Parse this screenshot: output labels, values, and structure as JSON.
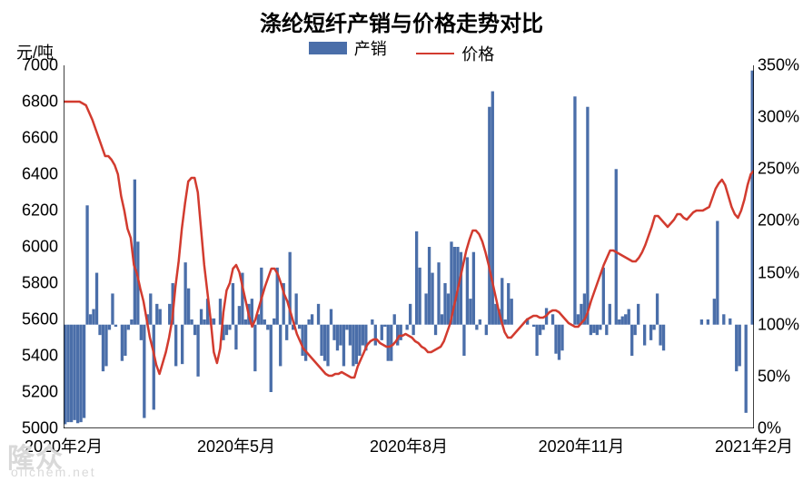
{
  "chart": {
    "type": "bar+line-dual-axis",
    "title": "涤纶短纤产销与价格走势对比",
    "title_fontsize": 24,
    "title_color": "#000000",
    "background_color": "#ffffff",
    "axis_color": "#000000",
    "tick_fontsize": 18,
    "legend": {
      "items": [
        {
          "label": "产销",
          "kind": "bar",
          "color": "#4a6ea9"
        },
        {
          "label": "价格",
          "kind": "line",
          "color": "#d23b2f"
        }
      ],
      "fontsize": 18
    },
    "left_axis": {
      "title": "元/吨",
      "min": 5000,
      "max": 7000,
      "step": 200,
      "ticks": [
        5000,
        5200,
        5400,
        5600,
        5800,
        6000,
        6200,
        6400,
        6600,
        6800,
        7000
      ]
    },
    "right_axis": {
      "min": 0,
      "max": 350,
      "step": 50,
      "ticks": [
        0,
        50,
        100,
        150,
        200,
        250,
        300,
        350
      ],
      "suffix": "%"
    },
    "x_axis": {
      "tick_labels": [
        "2020年2月",
        "2020年5月",
        "2020年8月",
        "2020年11月",
        "2021年2月"
      ]
    },
    "bars": {
      "color": "#4a6ea9",
      "baseline_pct": 100,
      "values_pct": [
        4,
        6,
        6,
        8,
        5,
        6,
        10,
        215,
        110,
        115,
        150,
        90,
        55,
        60,
        95,
        130,
        98,
        100,
        65,
        70,
        95,
        105,
        240,
        180,
        85,
        10,
        110,
        130,
        18,
        120,
        115,
        100,
        100,
        120,
        140,
        60,
        100,
        62,
        160,
        135,
        105,
        90,
        50,
        115,
        105,
        125,
        106,
        106,
        100,
        125,
        85,
        90,
        95,
        140,
        76,
        118,
        150,
        105,
        120,
        125,
        55,
        110,
        155,
        105,
        95,
        35,
        106,
        155,
        60,
        140,
        85,
        170,
        95,
        130,
        96,
        70,
        65,
        105,
        110,
        100,
        120,
        70,
        65,
        60,
        115,
        85,
        75,
        80,
        60,
        95,
        80,
        60,
        62,
        70,
        80,
        75,
        100,
        105,
        80,
        100,
        85,
        98,
        65,
        65,
        110,
        80,
        85,
        100,
        95,
        120,
        90,
        190,
        155,
        100,
        130,
        175,
        150,
        90,
        160,
        110,
        140,
        130,
        180,
        175,
        175,
        170,
        70,
        165,
        125,
        170,
        95,
        105,
        100,
        90,
        310,
        325,
        120,
        115,
        145,
        105,
        140,
        125,
        100,
        100,
        100,
        100,
        106,
        100,
        98,
        70,
        90,
        95,
        116,
        100,
        110,
        72,
        66,
        75,
        100,
        100,
        100,
        320,
        110,
        120,
        130,
        310,
        90,
        92,
        90,
        95,
        155,
        90,
        120,
        100,
        250,
        105,
        108,
        110,
        115,
        70,
        90,
        120,
        100,
        80,
        100,
        85,
        95,
        130,
        80,
        75,
        100,
        100,
        100,
        100,
        100,
        100,
        100,
        100,
        100,
        100,
        100,
        105,
        100,
        105,
        100,
        125,
        200,
        100,
        110,
        100,
        106,
        100,
        55,
        60,
        100,
        15,
        100,
        345
      ]
    },
    "line": {
      "color": "#d23b2f",
      "width": 2.5,
      "values_price": [
        6800,
        6800,
        6800,
        6800,
        6800,
        6800,
        6790,
        6780,
        6740,
        6700,
        6650,
        6600,
        6550,
        6500,
        6500,
        6480,
        6450,
        6400,
        6280,
        6200,
        6100,
        6050,
        5900,
        5850,
        5770,
        5700,
        5600,
        5500,
        5430,
        5350,
        5300,
        5360,
        5420,
        5500,
        5600,
        5780,
        5920,
        6100,
        6240,
        6360,
        6380,
        6380,
        6300,
        6100,
        5900,
        5750,
        5600,
        5420,
        5360,
        5440,
        5640,
        5760,
        5800,
        5880,
        5900,
        5860,
        5780,
        5700,
        5620,
        5560,
        5600,
        5660,
        5720,
        5780,
        5830,
        5880,
        5880,
        5850,
        5800,
        5740,
        5700,
        5640,
        5580,
        5520,
        5480,
        5440,
        5420,
        5400,
        5380,
        5360,
        5340,
        5320,
        5300,
        5290,
        5290,
        5300,
        5300,
        5310,
        5300,
        5290,
        5280,
        5280,
        5340,
        5380,
        5420,
        5460,
        5480,
        5490,
        5490,
        5470,
        5460,
        5450,
        5450,
        5460,
        5480,
        5510,
        5510,
        5520,
        5510,
        5500,
        5480,
        5470,
        5450,
        5440,
        5420,
        5420,
        5430,
        5440,
        5450,
        5480,
        5530,
        5580,
        5660,
        5740,
        5820,
        5900,
        5980,
        6040,
        6090,
        6090,
        6070,
        6030,
        5970,
        5900,
        5820,
        5740,
        5660,
        5590,
        5530,
        5500,
        5500,
        5520,
        5540,
        5560,
        5580,
        5600,
        5610,
        5620,
        5620,
        5610,
        5610,
        5620,
        5640,
        5650,
        5650,
        5640,
        5620,
        5600,
        5580,
        5570,
        5560,
        5560,
        5580,
        5600,
        5640,
        5700,
        5750,
        5800,
        5850,
        5900,
        5940,
        5980,
        5980,
        5970,
        5960,
        5950,
        5940,
        5930,
        5920,
        5920,
        5940,
        5970,
        6010,
        6060,
        6110,
        6170,
        6170,
        6150,
        6130,
        6110,
        6130,
        6150,
        6180,
        6180,
        6160,
        6150,
        6170,
        6190,
        6200,
        6200,
        6200,
        6210,
        6220,
        6270,
        6320,
        6350,
        6370,
        6340,
        6280,
        6220,
        6180,
        6160,
        6200,
        6260,
        6340,
        6400,
        6420
      ]
    },
    "watermark": {
      "text_main": "隆众",
      "text_sub": "oilchem.net",
      "color": "#d9d9d9"
    }
  }
}
